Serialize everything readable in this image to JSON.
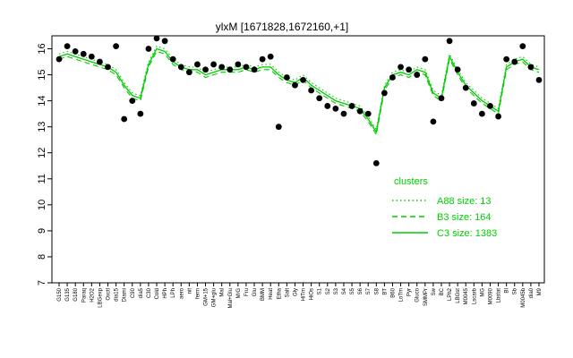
{
  "chart_data": {
    "type": "line",
    "title": "ylxM [1671828,1672160,+1]",
    "xlabel": "",
    "ylabel": "",
    "ylim": [
      7,
      16.5
    ],
    "yticks": [
      7,
      8,
      9,
      10,
      11,
      12,
      13,
      14,
      15,
      16
    ],
    "colors": {
      "lines": "#00cc00",
      "points": "#000000",
      "legend": "#00cc00"
    },
    "categories": [
      "G150",
      "G135",
      "G180",
      "Paraq",
      "H2O2",
      "LBGexp",
      "Oxctl",
      "dia15",
      "Diami",
      "C90",
      "dia5",
      "C30",
      "Cold",
      "HPh",
      "LPh",
      "aero",
      "nit",
      "ferm",
      "GM+15",
      "GM+glu",
      "Mal",
      "Mal+Glu",
      "M/G",
      "Fru",
      "Glu",
      "BMM",
      "Heat",
      "Etha",
      "Salt",
      "Gly",
      "HiTm",
      "HiOs",
      "S1",
      "S2",
      "S3",
      "S4",
      "S5",
      "S6",
      "S7",
      "S8",
      "BT",
      "B60",
      "LoTm",
      "Pyr",
      "Gluco",
      "SMMPr",
      "Sw",
      "BC",
      "LPh2",
      "LBGst",
      "M0045",
      "Lscarb",
      "MG",
      "M0090",
      "Lbstat",
      "BI",
      "Sb",
      "M0045b",
      "dia0",
      "M9"
    ],
    "series": [
      {
        "name": "C3 size: 1383",
        "style": "solid",
        "values": [
          15.7,
          15.8,
          15.7,
          15.6,
          15.5,
          15.4,
          15.3,
          15.1,
          14.6,
          14.2,
          14.1,
          15.4,
          16.0,
          15.9,
          15.5,
          15.3,
          15.2,
          15.2,
          15.0,
          15.1,
          15.2,
          15.2,
          15.2,
          15.3,
          15.2,
          15.3,
          15.3,
          15.0,
          14.8,
          14.7,
          14.9,
          14.6,
          14.4,
          14.2,
          14.0,
          13.9,
          13.8,
          13.7,
          13.3,
          12.8,
          14.5,
          15.0,
          15.1,
          15.0,
          15.2,
          15.1,
          14.3,
          14.1,
          15.7,
          15.1,
          14.6,
          14.3,
          14.0,
          13.8,
          13.6,
          15.3,
          15.5,
          15.6,
          15.3,
          15.2
        ]
      },
      {
        "name": "B3 size: 164",
        "style": "dashed",
        "values": [
          15.6,
          15.7,
          15.6,
          15.5,
          15.4,
          15.3,
          15.2,
          15.0,
          14.5,
          14.1,
          14.0,
          15.3,
          15.9,
          15.8,
          15.4,
          15.2,
          15.1,
          15.1,
          14.9,
          15.0,
          15.1,
          15.1,
          15.1,
          15.2,
          15.1,
          15.2,
          15.2,
          14.9,
          14.7,
          14.6,
          14.8,
          14.5,
          14.3,
          14.1,
          13.9,
          13.8,
          13.7,
          13.6,
          13.2,
          12.7,
          14.4,
          14.9,
          15.0,
          14.9,
          15.1,
          15.0,
          14.2,
          14.0,
          15.6,
          15.0,
          14.5,
          14.2,
          13.9,
          13.7,
          13.5,
          15.2,
          15.4,
          15.5,
          15.2,
          15.1
        ]
      },
      {
        "name": "A88 size: 13",
        "style": "dotted",
        "values": [
          15.8,
          15.9,
          15.8,
          15.7,
          15.6,
          15.5,
          15.4,
          15.2,
          14.7,
          14.3,
          14.2,
          15.5,
          16.1,
          16.0,
          15.6,
          15.4,
          15.3,
          15.3,
          15.1,
          15.2,
          15.3,
          15.3,
          15.3,
          15.4,
          15.3,
          15.4,
          15.4,
          15.1,
          14.9,
          14.8,
          15.0,
          14.7,
          14.5,
          14.3,
          14.1,
          14.0,
          13.9,
          13.8,
          13.4,
          12.9,
          14.6,
          15.1,
          15.2,
          15.1,
          15.3,
          15.2,
          14.4,
          14.2,
          15.8,
          15.2,
          14.7,
          14.4,
          14.1,
          13.9,
          13.7,
          15.4,
          15.6,
          15.7,
          15.4,
          15.3
        ]
      }
    ],
    "points": [
      15.6,
      16.1,
      15.9,
      15.8,
      15.7,
      15.5,
      15.3,
      16.1,
      13.3,
      14.0,
      13.5,
      16.0,
      16.4,
      16.3,
      15.6,
      15.3,
      15.1,
      15.4,
      15.2,
      15.4,
      15.3,
      15.2,
      15.4,
      15.3,
      15.2,
      15.6,
      15.7,
      13.0,
      14.9,
      14.6,
      14.8,
      14.4,
      14.1,
      13.8,
      13.7,
      13.5,
      13.8,
      13.6,
      13.5,
      11.6,
      14.3,
      14.9,
      15.3,
      15.2,
      15.0,
      15.6,
      13.2,
      14.1,
      16.3,
      15.2,
      14.5,
      13.9,
      13.5,
      13.8,
      13.4,
      15.6,
      15.5,
      16.1,
      15.3,
      14.8
    ],
    "legend": {
      "title": "clusters",
      "placement": "bottom-right",
      "entries": [
        {
          "label": "A88 size: 13",
          "style": "dotted"
        },
        {
          "label": "B3 size: 164",
          "style": "dashed"
        },
        {
          "label": "C3 size: 1383",
          "style": "solid"
        }
      ]
    }
  }
}
